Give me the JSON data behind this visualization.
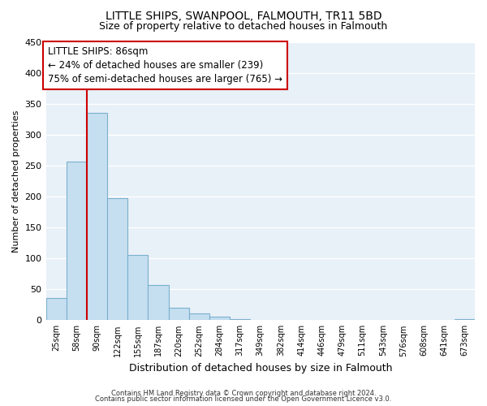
{
  "title": "LITTLE SHIPS, SWANPOOL, FALMOUTH, TR11 5BD",
  "subtitle": "Size of property relative to detached houses in Falmouth",
  "xlabel": "Distribution of detached houses by size in Falmouth",
  "ylabel": "Number of detached properties",
  "bar_labels": [
    "25sqm",
    "58sqm",
    "90sqm",
    "122sqm",
    "155sqm",
    "187sqm",
    "220sqm",
    "252sqm",
    "284sqm",
    "317sqm",
    "349sqm",
    "382sqm",
    "414sqm",
    "446sqm",
    "479sqm",
    "511sqm",
    "543sqm",
    "576sqm",
    "608sqm",
    "641sqm",
    "673sqm"
  ],
  "bar_values": [
    36,
    256,
    335,
    197,
    105,
    57,
    20,
    11,
    5,
    2,
    0,
    0,
    1,
    0,
    0,
    0,
    0,
    0,
    0,
    0,
    2
  ],
  "bar_color": "#c5dff0",
  "bar_edge_color": "#7ab0cc",
  "red_line_color": "#cc0000",
  "annotation_box_text_line1": "LITTLE SHIPS: 86sqm",
  "annotation_box_text_line2": "← 24% of detached houses are smaller (239)",
  "annotation_box_text_line3": "75% of semi-detached houses are larger (765) →",
  "ylim": [
    0,
    450
  ],
  "yticks": [
    0,
    50,
    100,
    150,
    200,
    250,
    300,
    350,
    400,
    450
  ],
  "background_color": "#e8f0f8",
  "grid_color": "#ffffff",
  "footer_line1": "Contains HM Land Registry data © Crown copyright and database right 2024.",
  "footer_line2": "Contains public sector information licensed under the Open Government Licence v3.0.",
  "title_fontsize": 10,
  "subtitle_fontsize": 9,
  "ylabel_fontsize": 8,
  "xlabel_fontsize": 9,
  "tick_fontsize": 8,
  "annotation_fontsize": 8.5
}
